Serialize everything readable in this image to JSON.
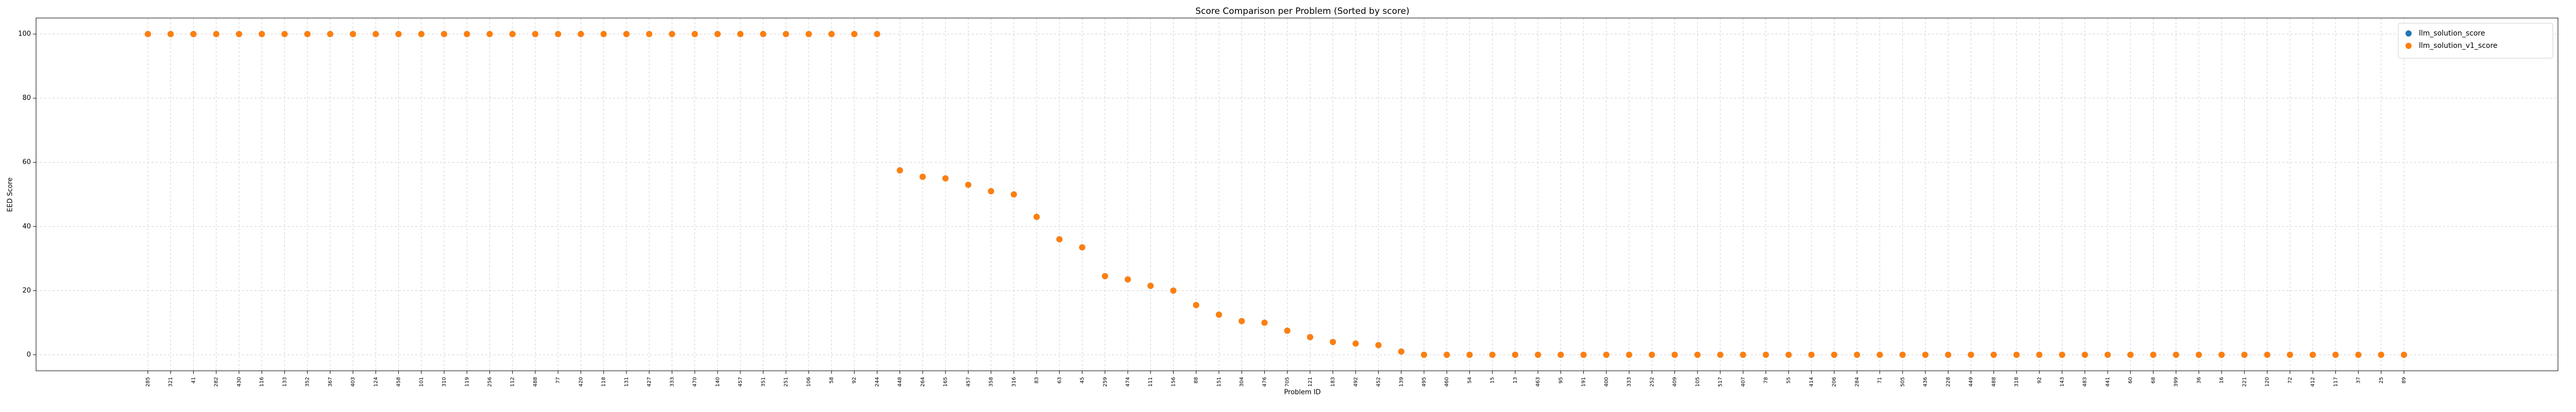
{
  "chart_data": {
    "type": "scatter",
    "title": "Score Comparison per Problem (Sorted by score)",
    "x_label": "Problem ID",
    "y_label": "EED Score",
    "categories": [
      "285",
      "321",
      "41",
      "282",
      "430",
      "116",
      "133",
      "352",
      "367",
      "403",
      "124",
      "458",
      "101",
      "310",
      "119",
      "256",
      "112",
      "488",
      "77",
      "420",
      "118",
      "131",
      "427",
      "333",
      "470",
      "140",
      "457",
      "351",
      "251",
      "106",
      "58",
      "92",
      "244",
      "448",
      "264",
      "165",
      "457",
      "358",
      "316",
      "83",
      "63",
      "45",
      "259",
      "474",
      "111",
      "156",
      "88",
      "151",
      "304",
      "476",
      "705",
      "121",
      "183",
      "492",
      "452",
      "139",
      "495",
      "460",
      "54",
      "15",
      "13",
      "463",
      "95",
      "191",
      "400",
      "333",
      "252",
      "409",
      "105",
      "517",
      "407",
      "78",
      "55",
      "414",
      "206",
      "284",
      "71",
      "505",
      "436",
      "228",
      "449",
      "488",
      "318",
      "92",
      "143",
      "483",
      "441",
      "60",
      "68",
      "399",
      "36",
      "16",
      "221",
      "120",
      "72",
      "412",
      "117",
      "37",
      "25",
      "89"
    ],
    "series": [
      {
        "name": "llm_solution_score",
        "color": "#1f77b4",
        "values": [
          100,
          100,
          100,
          100,
          100,
          100,
          100,
          100,
          100,
          100,
          100,
          100,
          100,
          100,
          100,
          100,
          100,
          100,
          100,
          100,
          100,
          100,
          100,
          100,
          100,
          100,
          100,
          100,
          100,
          100,
          100,
          100,
          100,
          57.5,
          55.5,
          55,
          53,
          51,
          50,
          43,
          36,
          33.5,
          24.5,
          23.5,
          21.5,
          20,
          15.5,
          12.5,
          10.5,
          10,
          7.5,
          5.5,
          4,
          3.5,
          3,
          1,
          0,
          0,
          0,
          0,
          0,
          0,
          0,
          0,
          0,
          0,
          0,
          0,
          0,
          0,
          0,
          0,
          0,
          0,
          0,
          0,
          0,
          0,
          0,
          0,
          0,
          0,
          0,
          0,
          0,
          0,
          0,
          0,
          0,
          0,
          0,
          0,
          0,
          0,
          0,
          0,
          0,
          0,
          0,
          0
        ]
      },
      {
        "name": "llm_solution_v1_score",
        "color": "#ff7f0e",
        "values": [
          100,
          100,
          100,
          100,
          100,
          100,
          100,
          100,
          100,
          100,
          100,
          100,
          100,
          100,
          100,
          100,
          100,
          100,
          100,
          100,
          100,
          100,
          100,
          100,
          100,
          100,
          100,
          100,
          100,
          100,
          100,
          100,
          100,
          57.5,
          55.5,
          55,
          53,
          51,
          50,
          43,
          36,
          33.5,
          24.5,
          23.5,
          21.5,
          20,
          15.5,
          12.5,
          10.5,
          10,
          7.5,
          5.5,
          4,
          3.5,
          3,
          1,
          0,
          0,
          0,
          0,
          0,
          0,
          0,
          0,
          0,
          0,
          0,
          0,
          0,
          0,
          0,
          0,
          0,
          0,
          0,
          0,
          0,
          0,
          0,
          0,
          0,
          0,
          0,
          0,
          0,
          0,
          0,
          0,
          0,
          0,
          0,
          0,
          0,
          0,
          0,
          0,
          0,
          0,
          0,
          0
        ]
      }
    ],
    "ylim": [
      -5,
      105
    ],
    "yticks": [
      0,
      20,
      40,
      60,
      80,
      100
    ],
    "grid": true,
    "legend": "upper-right"
  }
}
